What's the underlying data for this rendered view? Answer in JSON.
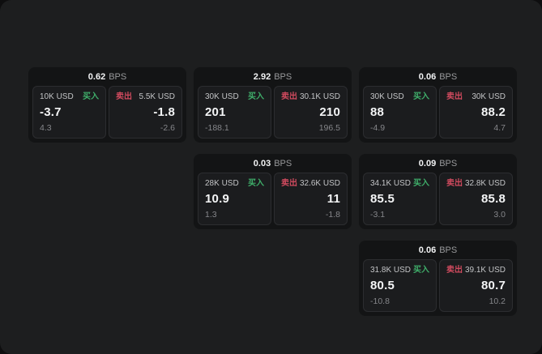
{
  "labels": {
    "buy": "买入",
    "sell": "卖出",
    "bps_unit": "BPS"
  },
  "colors": {
    "background": "#1d1e1f",
    "card": "#131415",
    "panel": "#1b1c1e",
    "panel_border": "#2c2d30",
    "buy_green": "#3fae6a",
    "sell_red": "#cf4a5e",
    "text_primary": "#f4f5f6",
    "text_secondary": "#85868a",
    "text_amount": "#c3c4c6"
  },
  "cards": [
    {
      "bps": "0.62",
      "buy": {
        "amount": "10K USD",
        "value": "-3.7",
        "delta": "4.3"
      },
      "sell": {
        "amount": "5.5K USD",
        "value": "-1.8",
        "delta": "-2.6"
      }
    },
    {
      "bps": "2.92",
      "buy": {
        "amount": "30K USD",
        "value": "201",
        "delta": "-188.1"
      },
      "sell": {
        "amount": "30.1K USD",
        "value": "210",
        "delta": "196.5"
      }
    },
    {
      "bps": "0.06",
      "buy": {
        "amount": "30K USD",
        "value": "88",
        "delta": "-4.9"
      },
      "sell": {
        "amount": "30K USD",
        "value": "88.2",
        "delta": "4.7"
      }
    },
    {
      "bps": "0.03",
      "buy": {
        "amount": "28K USD",
        "value": "10.9",
        "delta": "1.3"
      },
      "sell": {
        "amount": "32.6K USD",
        "value": "11",
        "delta": "-1.8"
      }
    },
    {
      "bps": "0.09",
      "buy": {
        "amount": "34.1K USD",
        "value": "85.5",
        "delta": "-3.1"
      },
      "sell": {
        "amount": "32.8K USD",
        "value": "85.8",
        "delta": "3.0"
      }
    },
    {
      "bps": "0.06",
      "buy": {
        "amount": "31.8K USD",
        "value": "80.5",
        "delta": "-10.8"
      },
      "sell": {
        "amount": "39.1K USD",
        "value": "80.7",
        "delta": "10.2"
      }
    }
  ]
}
